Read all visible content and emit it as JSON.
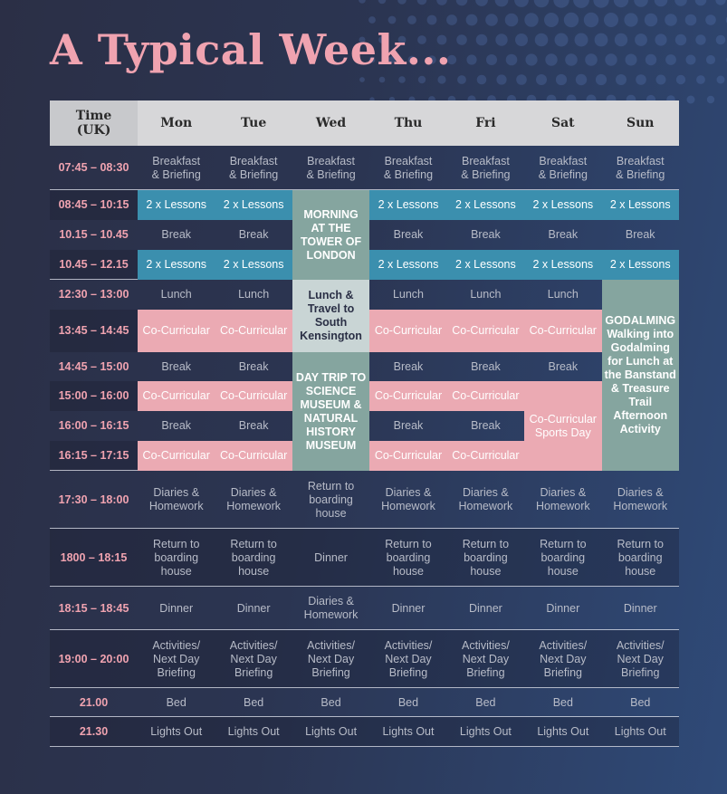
{
  "title": "A Typical Week...",
  "colors": {
    "background": "#2b3552",
    "title": "#f0a3b0",
    "header": "#d7d7d9",
    "lessons": "#3b8fae",
    "co_curricular": "#ebaab3",
    "trip": "#85a59f",
    "lunch_travel": "#c9d5d5"
  },
  "header": {
    "time": "Time\n(UK)",
    "days": [
      "Mon",
      "Tue",
      "Wed",
      "Thu",
      "Fri",
      "Sat",
      "Sun"
    ]
  },
  "times": [
    "07:45 – 08:30",
    "08:45 – 10:15",
    "10.15 – 10.45",
    "10.45 – 12.15",
    "12:30 – 13:00",
    "13:45 – 14:45",
    "14:45 – 15:00",
    "15:00 – 16:00",
    "16:00 – 16:15",
    "16:15 – 17:15",
    "17:30 – 18:00",
    "1800 – 18:15",
    "18:15 – 18:45",
    "19:00 – 20:00",
    "21.00",
    "21.30"
  ],
  "cells": {
    "breakfast": "Breakfast\n& Briefing",
    "lessons": "2 x Lessons",
    "break": "Break",
    "lunch": "Lunch",
    "co_curricular": "Co-Curricular",
    "diaries": "Diaries &\nHomework",
    "return": "Return to\nboarding\nhouse",
    "dinner": "Dinner",
    "activities": "Activities/\nNext Day\nBriefing",
    "bed": "Bed",
    "lights_out": "Lights Out"
  },
  "special": {
    "wed_morning": "MORNING\nAT THE\nTOWER OF\nLONDON",
    "wed_lunch": "Lunch &\nTravel to\nSouth\nKensington",
    "wed_trip": "DAY TRIP TO\nSCIENCE\nMUSEUM &\nNATURAL\nHISTORY\nMUSEUM",
    "sat_sports": "Co-Curricular\nSports Day",
    "sun_title": "GODALMING",
    "sun_text": "Walking into\nGodalming\nfor Lunch at\nthe Banstand\n& Treasure\nTrail\nAfternoon\nActivity"
  }
}
